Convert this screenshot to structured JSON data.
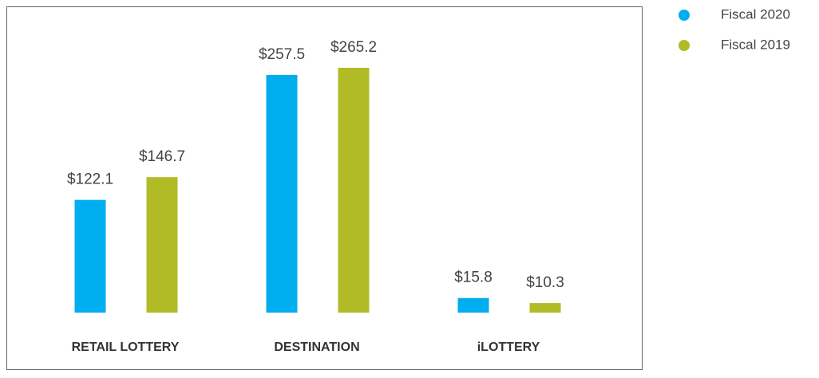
{
  "chart_data": {
    "type": "bar",
    "categories": [
      "RETAIL LOTTERY",
      "DESTINATION",
      "iLOTTERY"
    ],
    "series": [
      {
        "name": "Fiscal 2020",
        "color": "#00aeef",
        "values": [
          122.1,
          257.5,
          15.8
        ],
        "value_labels": [
          "$122.1",
          "$257.5",
          "$15.8"
        ]
      },
      {
        "name": "Fiscal 2019",
        "color": "#b1bb25",
        "values": [
          146.7,
          265.2,
          10.3
        ],
        "value_labels": [
          "$146.7",
          "$265.2",
          "$10.3"
        ]
      }
    ],
    "legend": "top-right"
  }
}
